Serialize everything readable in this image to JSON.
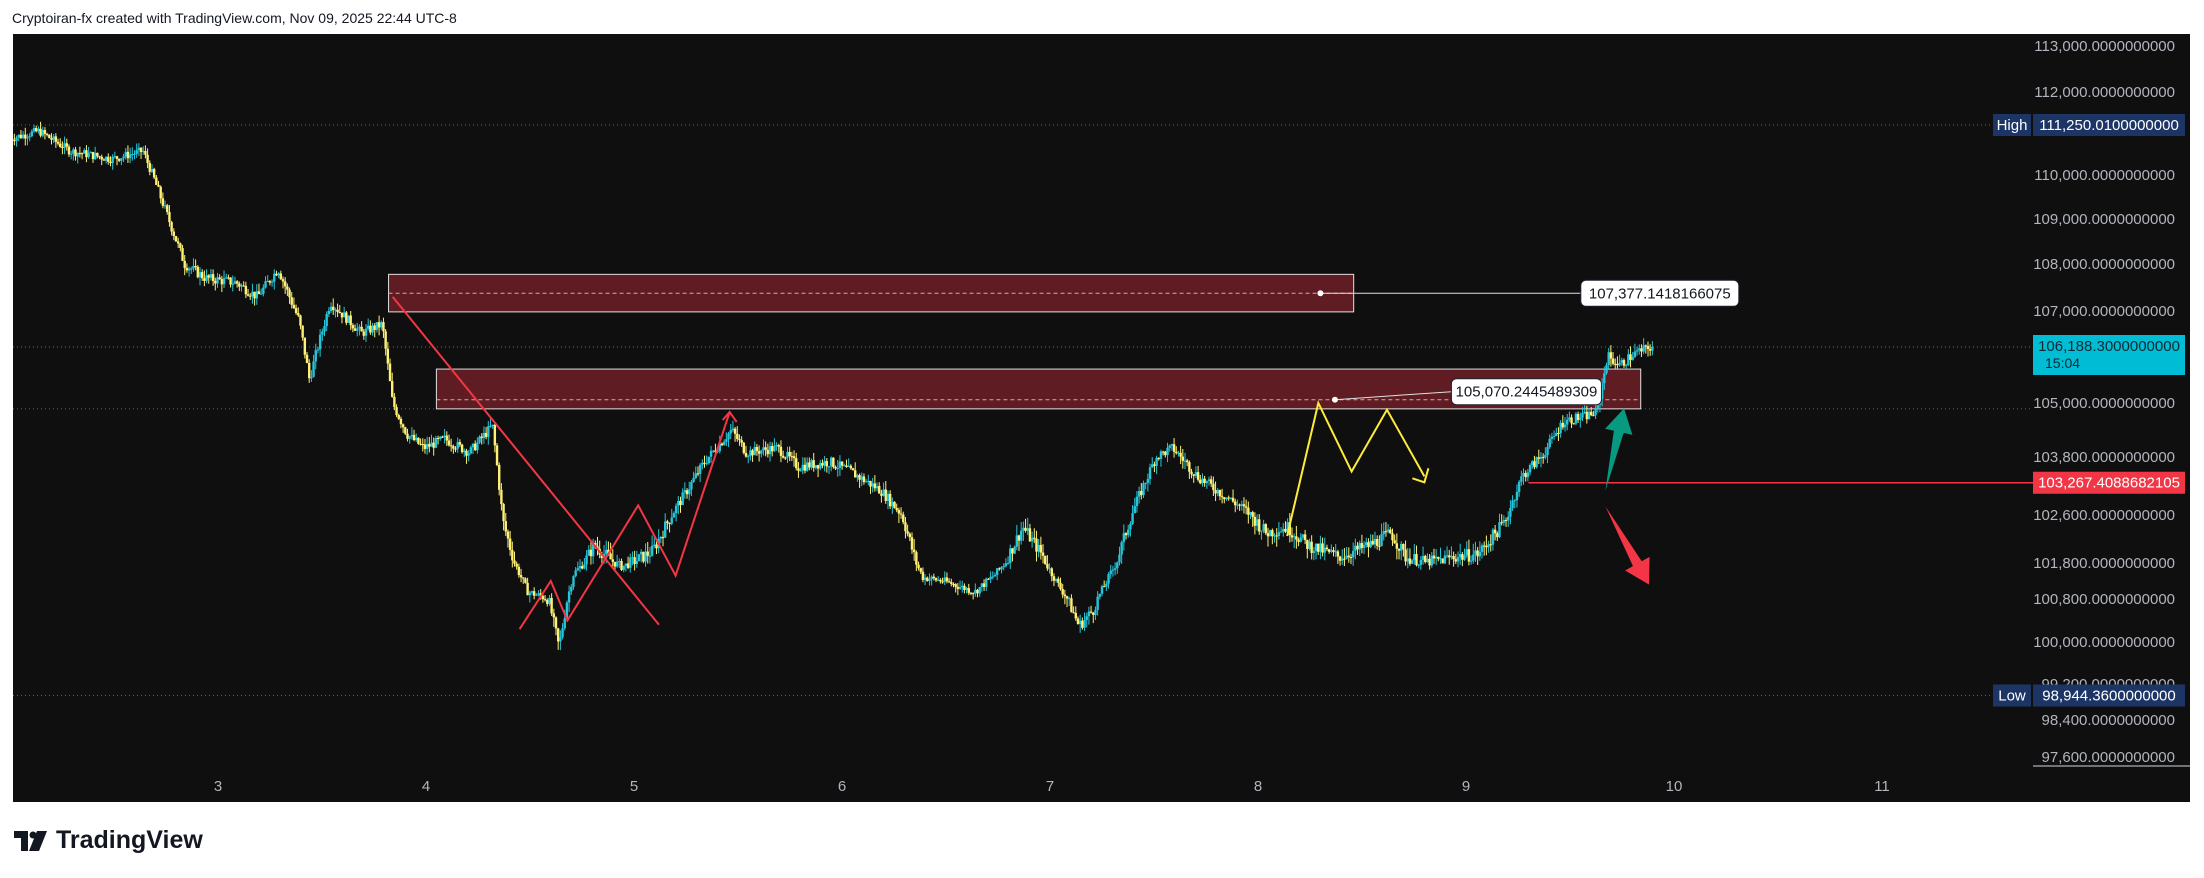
{
  "header": {
    "attribution": "Cryptoiran-fx created with TradingView.com, Nov 09, 2025 22:44 UTC-8"
  },
  "footer": {
    "brand": "TradingView"
  },
  "colors": {
    "background": "#0f0f0f",
    "candle_up": "#26c6da",
    "candle_down": "#fff176",
    "zone_fill": "#6d1f26",
    "red_line": "#f23645",
    "green_arrow": "#089981",
    "yellow_line": "#ffeb3b",
    "high_badge": "#1c3565",
    "current_price_badge": "#00bcd4",
    "support_badge": "#f23645"
  },
  "chart_data": {
    "type": "candlestick",
    "symbol_timeframe": "intraday",
    "x_axis": {
      "ticks": [
        "3",
        "4",
        "5",
        "6",
        "7",
        "8",
        "9",
        "10",
        "11"
      ],
      "range_days": [
        2.0,
        11.98
      ]
    },
    "y_axis": {
      "scale": "custom",
      "ticks": [
        {
          "price": 113000,
          "label": "113,000.0000000000"
        },
        {
          "price": 112000,
          "label": "112,000.0000000000"
        },
        {
          "price": 110000,
          "label": "110,000.0000000000"
        },
        {
          "price": 109000,
          "label": "109,000.0000000000"
        },
        {
          "price": 108000,
          "label": "108,000.0000000000"
        },
        {
          "price": 107000,
          "label": "107,000.0000000000"
        },
        {
          "price": 105000,
          "label": "105,000.0000000000"
        },
        {
          "price": 103800,
          "label": "103,800.0000000000"
        },
        {
          "price": 102600,
          "label": "102,600.0000000000"
        },
        {
          "price": 101800,
          "label": "101,800.0000000000"
        },
        {
          "price": 100800,
          "label": "100,800.0000000000"
        },
        {
          "price": 100000,
          "label": "100,000.0000000000"
        },
        {
          "price": 99200,
          "label": "99,200.0000000000"
        },
        {
          "price": 98400,
          "label": "98,400.0000000000"
        },
        {
          "price": 97600,
          "label": "97,600.0000000000"
        }
      ],
      "price_map": [
        [
          113000,
          113000
        ],
        [
          112000,
          112000
        ],
        [
          111250,
          111250
        ],
        [
          110000,
          110000
        ],
        [
          109000,
          109000
        ],
        [
          108000,
          108000
        ],
        [
          107000,
          107000
        ],
        [
          106188,
          106050
        ],
        [
          105000,
          105000
        ],
        [
          103800,
          103900
        ],
        [
          102600,
          102920
        ],
        [
          101800,
          102080
        ],
        [
          100800,
          101100
        ],
        [
          100000,
          100240
        ],
        [
          99200,
          99400
        ],
        [
          98400,
          98520
        ],
        [
          97600,
          97640
        ]
      ]
    },
    "badges": [
      {
        "tag": "High",
        "label": "111,250.0100000000",
        "price": 111250.01
      },
      {
        "tag": "",
        "label": "106,188.3000000000",
        "sub": "15:04",
        "price": 106188.3
      },
      {
        "tag": "",
        "label": "103,267.4088682105",
        "price": 103267.4088682105
      },
      {
        "tag": "Low",
        "label": "98,944.3600000000",
        "price": 98944.36
      }
    ],
    "zones": [
      {
        "x0": 3.82,
        "x1": 8.46,
        "top": 107780,
        "bottom": 106980,
        "mid": 107377.1418166075
      },
      {
        "x0": 4.05,
        "x1": 9.84,
        "top": 105720,
        "bottom": 104870,
        "mid": 105070.2445489309
      }
    ],
    "callouts": [
      {
        "label": "107,377.1418166075",
        "price": 107377.1418166075,
        "x_anchor": 8.3,
        "x_box": 9.6
      },
      {
        "label": "105,070.2445489309",
        "price": 105070.2445489309,
        "x_anchor": 8.37,
        "x_box": 8.93
      }
    ],
    "support_line": {
      "price": 103267.4088682105,
      "x0": 9.3
    },
    "swing_lines": [
      {
        "color": "red",
        "points": [
          [
            3.84,
            107300
          ],
          [
            5.12,
            100320
          ]
        ]
      },
      {
        "color": "red",
        "points": [
          [
            4.45,
            100240
          ],
          [
            4.6,
            101300
          ],
          [
            4.68,
            100400
          ],
          [
            5.02,
            102800
          ],
          [
            5.2,
            101450
          ],
          [
            5.46,
            104800
          ]
        ]
      },
      {
        "color": "yellow",
        "points": [
          [
            8.14,
            102250
          ],
          [
            8.29,
            105000
          ],
          [
            8.45,
            103500
          ],
          [
            8.62,
            104850
          ],
          [
            8.8,
            103400
          ]
        ]
      }
    ],
    "candles_summary": {
      "points": [
        [
          2.0,
          110900
        ],
        [
          2.15,
          111100
        ],
        [
          2.3,
          110600
        ],
        [
          2.5,
          110400
        ],
        [
          2.65,
          110600
        ],
        [
          2.75,
          109300
        ],
        [
          2.85,
          108000
        ],
        [
          2.95,
          107700
        ],
        [
          3.1,
          107600
        ],
        [
          3.2,
          107300
        ],
        [
          3.3,
          107900
        ],
        [
          3.4,
          106800
        ],
        [
          3.45,
          105500
        ],
        [
          3.55,
          107200
        ],
        [
          3.7,
          106500
        ],
        [
          3.8,
          106700
        ],
        [
          3.85,
          105000
        ],
        [
          3.92,
          104300
        ],
        [
          4.0,
          104000
        ],
        [
          4.1,
          104200
        ],
        [
          4.22,
          103900
        ],
        [
          4.33,
          104500
        ],
        [
          4.38,
          102500
        ],
        [
          4.5,
          101000
        ],
        [
          4.6,
          100800
        ],
        [
          4.65,
          99900
        ],
        [
          4.72,
          101500
        ],
        [
          4.82,
          102100
        ],
        [
          4.95,
          101700
        ],
        [
          5.1,
          102000
        ],
        [
          5.25,
          103000
        ],
        [
          5.35,
          103700
        ],
        [
          5.48,
          104400
        ],
        [
          5.55,
          103900
        ],
        [
          5.7,
          104000
        ],
        [
          5.8,
          103600
        ],
        [
          5.95,
          103700
        ],
        [
          6.05,
          103500
        ],
        [
          6.2,
          103100
        ],
        [
          6.3,
          102600
        ],
        [
          6.4,
          101400
        ],
        [
          6.5,
          101300
        ],
        [
          6.65,
          101000
        ],
        [
          6.75,
          101500
        ],
        [
          6.88,
          102400
        ],
        [
          6.98,
          101900
        ],
        [
          7.05,
          101200
        ],
        [
          7.15,
          100300
        ],
        [
          7.22,
          100600
        ],
        [
          7.32,
          101700
        ],
        [
          7.42,
          102800
        ],
        [
          7.52,
          103800
        ],
        [
          7.6,
          104000
        ],
        [
          7.72,
          103400
        ],
        [
          7.85,
          103000
        ],
        [
          7.95,
          102700
        ],
        [
          8.05,
          102300
        ],
        [
          8.15,
          102400
        ],
        [
          8.25,
          102100
        ],
        [
          8.4,
          101900
        ],
        [
          8.55,
          102100
        ],
        [
          8.65,
          102300
        ],
        [
          8.72,
          101900
        ],
        [
          8.82,
          101800
        ],
        [
          8.95,
          101900
        ],
        [
          9.07,
          101950
        ],
        [
          9.2,
          102500
        ],
        [
          9.28,
          103400
        ],
        [
          9.38,
          103850
        ],
        [
          9.48,
          104600
        ],
        [
          9.58,
          104700
        ],
        [
          9.64,
          104800
        ],
        [
          9.69,
          106000
        ],
        [
          9.75,
          105800
        ],
        [
          9.82,
          106050
        ],
        [
          9.9,
          106188.3
        ]
      ]
    },
    "arrows": [
      {
        "color": "green",
        "from": [
          9.67,
          103100
        ],
        "to": [
          9.76,
          104880
        ],
        "direction": "up"
      },
      {
        "color": "red",
        "from": [
          9.67,
          102780
        ],
        "to": [
          9.88,
          101200
        ],
        "direction": "down"
      }
    ]
  }
}
